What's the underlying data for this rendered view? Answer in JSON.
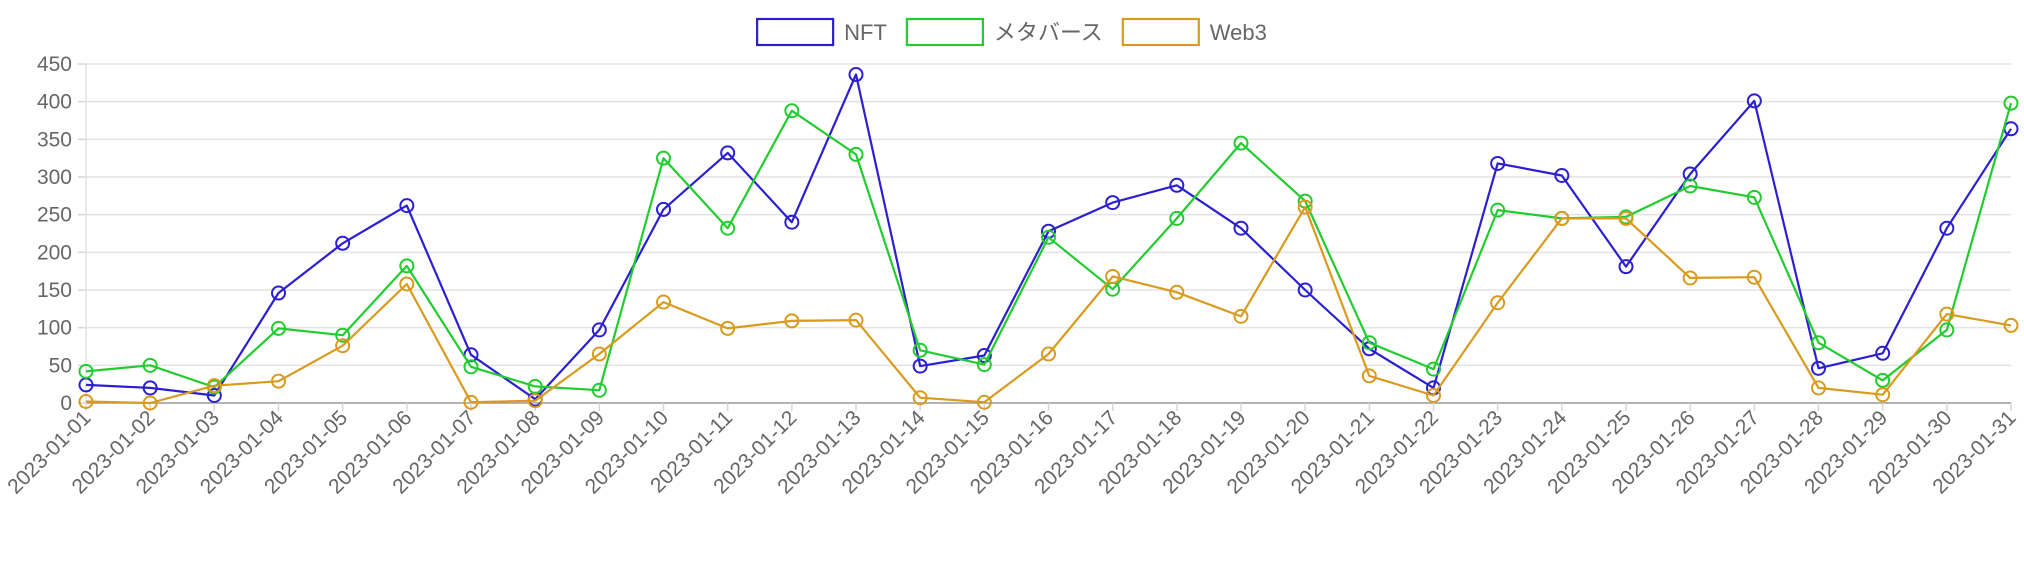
{
  "chart_data": {
    "type": "line",
    "title": "",
    "xlabel": "",
    "ylabel": "",
    "ylim": [
      0,
      450
    ],
    "yticks": [
      0,
      50,
      100,
      150,
      200,
      250,
      300,
      350,
      400,
      450
    ],
    "grid": true,
    "legend_position": "top-center",
    "x": [
      "2023-01-01",
      "2023-01-02",
      "2023-01-03",
      "2023-01-04",
      "2023-01-05",
      "2023-01-06",
      "2023-01-07",
      "2023-01-08",
      "2023-01-09",
      "2023-01-10",
      "2023-01-11",
      "2023-01-12",
      "2023-01-13",
      "2023-01-14",
      "2023-01-15",
      "2023-01-16",
      "2023-01-17",
      "2023-01-18",
      "2023-01-19",
      "2023-01-20",
      "2023-01-21",
      "2023-01-22",
      "2023-01-23",
      "2023-01-24",
      "2023-01-25",
      "2023-01-26",
      "2023-01-27",
      "2023-01-28",
      "2023-01-29",
      "2023-01-30",
      "2023-01-31"
    ],
    "series": [
      {
        "name": "NFT",
        "color": "#2b1fd1",
        "values": [
          24,
          20,
          10,
          146,
          212,
          262,
          64,
          5,
          97,
          257,
          332,
          240,
          436,
          49,
          63,
          228,
          266,
          289,
          232,
          150,
          72,
          20,
          318,
          302,
          181,
          304,
          401,
          46,
          66,
          232,
          364
        ]
      },
      {
        "name": "メタバース",
        "color": "#22cc2f",
        "values": [
          42,
          50,
          21,
          99,
          90,
          182,
          48,
          22,
          17,
          325,
          232,
          388,
          330,
          70,
          51,
          220,
          151,
          245,
          345,
          268,
          80,
          45,
          256,
          245,
          247,
          288,
          273,
          80,
          30,
          97,
          398
        ]
      },
      {
        "name": "Web3",
        "color": "#d99a1e",
        "values": [
          2,
          0,
          23,
          29,
          76,
          158,
          1,
          3,
          65,
          134,
          99,
          109,
          110,
          7,
          1,
          65,
          168,
          147,
          115,
          260,
          36,
          10,
          133,
          245,
          245,
          166,
          167,
          20,
          11,
          118,
          103
        ]
      }
    ]
  }
}
